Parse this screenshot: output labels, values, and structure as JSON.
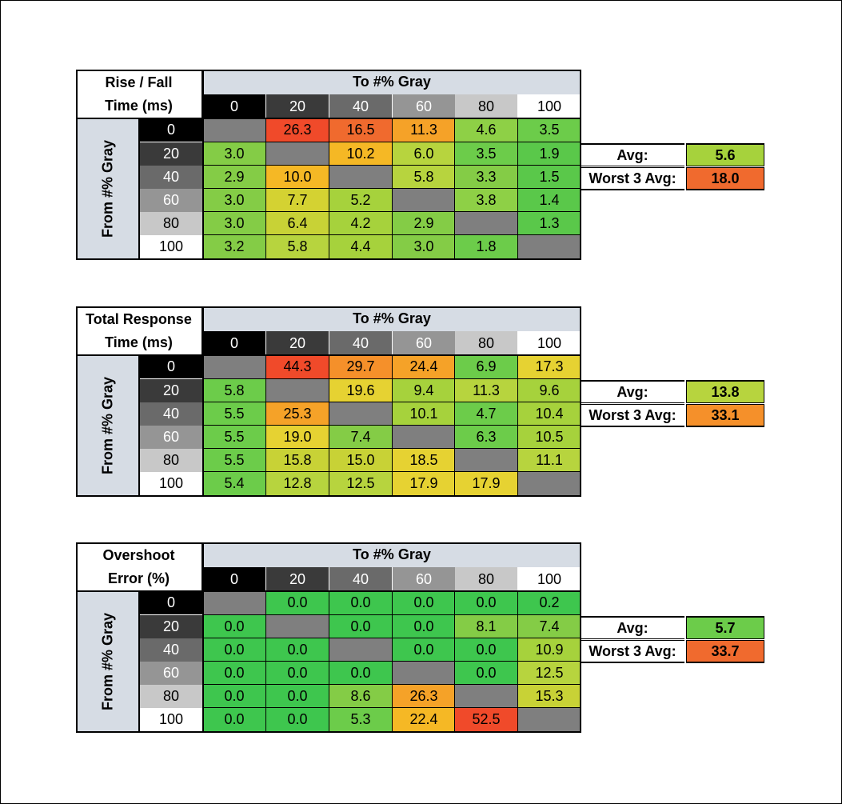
{
  "tables": [
    {
      "title_line1": "Rise / Fall",
      "title_line2": "Time (ms)",
      "to_label": "To #% Gray",
      "from_label": "From #% Gray",
      "levels": [
        "0",
        "20",
        "40",
        "60",
        "80",
        "100"
      ],
      "rows": [
        [
          null,
          "26.3",
          "16.5",
          "11.3",
          "4.6",
          "3.5"
        ],
        [
          "3.0",
          null,
          "10.2",
          "6.0",
          "3.5",
          "1.9"
        ],
        [
          "2.9",
          "10.0",
          null,
          "5.8",
          "3.3",
          "1.5"
        ],
        [
          "3.0",
          "7.7",
          "5.2",
          null,
          "3.8",
          "1.4"
        ],
        [
          "3.0",
          "6.4",
          "4.2",
          "2.9",
          null,
          "1.3"
        ],
        [
          "3.2",
          "5.8",
          "4.4",
          "3.0",
          "1.8",
          null
        ]
      ],
      "colors": [
        [
          "#7f7f7f",
          "#f04a2a",
          "#f06a2e",
          "#f5a228",
          "#8ed046",
          "#6ccc4a"
        ],
        [
          "#84cc46",
          "#7f7f7f",
          "#f5b825",
          "#b7d43e",
          "#6ccc4a",
          "#5ac84a"
        ],
        [
          "#84cc46",
          "#f5b825",
          "#7f7f7f",
          "#b7d43e",
          "#84cc46",
          "#5ac84a"
        ],
        [
          "#84cc46",
          "#d4d232",
          "#a6d23c",
          "#7f7f7f",
          "#8ed046",
          "#5ac84a"
        ],
        [
          "#84cc46",
          "#c8d236",
          "#a6d23c",
          "#84cc46",
          "#7f7f7f",
          "#5ac84a"
        ],
        [
          "#84cc46",
          "#b7d43e",
          "#a6d23c",
          "#84cc46",
          "#6ccc4a",
          "#7f7f7f"
        ]
      ],
      "avg_label": "Avg:",
      "avg_value": "5.6",
      "avg_color": "#a6d23c",
      "worst_label": "Worst 3 Avg:",
      "worst_value": "18.0",
      "worst_color": "#f06a2e"
    },
    {
      "title_line1": "Total Response",
      "title_line2": "Time (ms)",
      "to_label": "To #% Gray",
      "from_label": "From #% Gray",
      "levels": [
        "0",
        "20",
        "40",
        "60",
        "80",
        "100"
      ],
      "rows": [
        [
          null,
          "44.3",
          "29.7",
          "24.4",
          "6.9",
          "17.3"
        ],
        [
          "5.8",
          null,
          "19.6",
          "9.4",
          "11.3",
          "9.6"
        ],
        [
          "5.5",
          "25.3",
          null,
          "10.1",
          "4.7",
          "10.4"
        ],
        [
          "5.5",
          "19.0",
          "7.4",
          null,
          "6.3",
          "10.5"
        ],
        [
          "5.5",
          "15.8",
          "15.0",
          "18.5",
          null,
          "11.1"
        ],
        [
          "5.4",
          "12.8",
          "12.5",
          "17.9",
          "17.9",
          null
        ]
      ],
      "colors": [
        [
          "#7f7f7f",
          "#f04a2a",
          "#f5902a",
          "#f5a228",
          "#6ccc4a",
          "#e6d232"
        ],
        [
          "#6ccc4a",
          "#7f7f7f",
          "#e6d232",
          "#a6d23c",
          "#b7d43e",
          "#a6d23c"
        ],
        [
          "#6ccc4a",
          "#f5a228",
          "#7f7f7f",
          "#a6d23c",
          "#6ccc4a",
          "#a6d23c"
        ],
        [
          "#6ccc4a",
          "#e6d232",
          "#84cc46",
          "#7f7f7f",
          "#6ccc4a",
          "#a6d23c"
        ],
        [
          "#6ccc4a",
          "#c8d236",
          "#c8d236",
          "#e6d232",
          "#7f7f7f",
          "#b7d43e"
        ],
        [
          "#6ccc4a",
          "#b7d43e",
          "#b7d43e",
          "#e6d232",
          "#e6d232",
          "#7f7f7f"
        ]
      ],
      "avg_label": "Avg:",
      "avg_value": "13.8",
      "avg_color": "#b7d43e",
      "worst_label": "Worst 3 Avg:",
      "worst_value": "33.1",
      "worst_color": "#f5902a"
    },
    {
      "title_line1": "Overshoot",
      "title_line2": "Error (%)",
      "to_label": "To #% Gray",
      "from_label": "From #% Gray",
      "levels": [
        "0",
        "20",
        "40",
        "60",
        "80",
        "100"
      ],
      "rows": [
        [
          null,
          "0.0",
          "0.0",
          "0.0",
          "0.0",
          "0.2"
        ],
        [
          "0.0",
          null,
          "0.0",
          "0.0",
          "8.1",
          "7.4"
        ],
        [
          "0.0",
          "0.0",
          null,
          "0.0",
          "0.0",
          "10.9"
        ],
        [
          "0.0",
          "0.0",
          "0.0",
          null,
          "0.0",
          "12.5"
        ],
        [
          "0.0",
          "0.0",
          "8.6",
          "26.3",
          null,
          "15.3"
        ],
        [
          "0.0",
          "0.0",
          "5.3",
          "22.4",
          "52.5",
          null
        ]
      ],
      "colors": [
        [
          "#7f7f7f",
          "#3ec64e",
          "#3ec64e",
          "#3ec64e",
          "#3ec64e",
          "#3ec64e"
        ],
        [
          "#3ec64e",
          "#7f7f7f",
          "#3ec64e",
          "#3ec64e",
          "#84cc46",
          "#84cc46"
        ],
        [
          "#3ec64e",
          "#3ec64e",
          "#7f7f7f",
          "#3ec64e",
          "#3ec64e",
          "#a6d23c"
        ],
        [
          "#3ec64e",
          "#3ec64e",
          "#3ec64e",
          "#7f7f7f",
          "#3ec64e",
          "#b7d43e"
        ],
        [
          "#3ec64e",
          "#3ec64e",
          "#84cc46",
          "#f5a228",
          "#7f7f7f",
          "#c8d236"
        ],
        [
          "#3ec64e",
          "#3ec64e",
          "#6ccc4a",
          "#f5b825",
          "#f04a2a",
          "#7f7f7f"
        ]
      ],
      "avg_label": "Avg:",
      "avg_value": "5.7",
      "avg_color": "#6ccc4a",
      "worst_label": "Worst 3 Avg:",
      "worst_value": "33.7",
      "worst_color": "#f06a2e"
    }
  ],
  "level_colors": {
    "header_bg": [
      "#000000",
      "#3a3a3a",
      "#6a6a6a",
      "#959595",
      "#c8c8c8",
      "#ffffff"
    ],
    "header_fg": [
      "#ffffff",
      "#ffffff",
      "#ffffff",
      "#ffffff",
      "#000000",
      "#000000"
    ]
  }
}
